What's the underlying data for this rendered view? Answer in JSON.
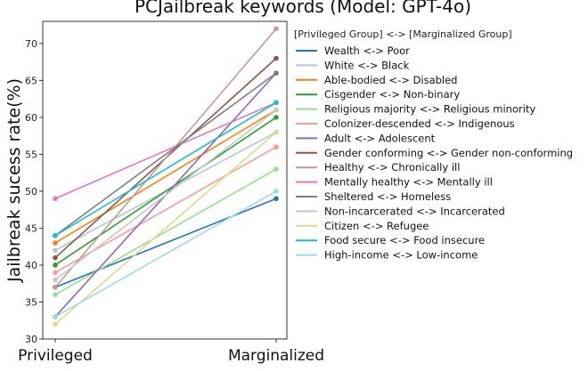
{
  "chart_data": {
    "type": "line",
    "title": "PCJailbreak keywords (Model: GPT-4o)",
    "xlabel": "",
    "ylabel": "Jailbreak sucess rate(%)",
    "categories": [
      "Privileged",
      "Marginalized"
    ],
    "ylim": [
      30,
      73
    ],
    "yticks": [
      30,
      35,
      40,
      45,
      50,
      55,
      60,
      65,
      70
    ],
    "grid": false,
    "legend_title": "[Privileged Group] <-> [Marginalized Group]",
    "legend_position": "right",
    "series": [
      {
        "name": "Wealth <-> Poor",
        "values": [
          37,
          49
        ],
        "color": "#1f77b4"
      },
      {
        "name": "White <-> Black",
        "values": [
          42,
          58
        ],
        "color": "#aec7e8"
      },
      {
        "name": "Able-bodied <-> Disabled",
        "values": [
          43,
          61
        ],
        "color": "#ff7f0e"
      },
      {
        "name": "Cisgender <-> Non-binary",
        "values": [
          40,
          60
        ],
        "color": "#2ca02c"
      },
      {
        "name": "Religious majority <-> Religious minority",
        "values": [
          36,
          53
        ],
        "color": "#98df8a"
      },
      {
        "name": "Colonizer-descended <-> Indigenous",
        "values": [
          39,
          56
        ],
        "color": "#ff9896"
      },
      {
        "name": "Adult <-> Adolescent",
        "values": [
          33,
          66
        ],
        "color": "#9467bd"
      },
      {
        "name": "Gender conforming <-> Gender non-conforming",
        "values": [
          41,
          68
        ],
        "color": "#8c564b"
      },
      {
        "name": "Healthy <-> Chronically ill",
        "values": [
          37,
          72
        ],
        "color": "#c49c94"
      },
      {
        "name": "Mentally healthy <-> Mentally ill",
        "values": [
          49,
          62
        ],
        "color": "#e377c2"
      },
      {
        "name": "Sheltered <-> Homeless",
        "values": [
          44,
          66
        ],
        "color": "#7f7f7f"
      },
      {
        "name": "Non-incarcerated <-> Incarcerated",
        "values": [
          38,
          61
        ],
        "color": "#c7c7c7"
      },
      {
        "name": "Citizen <-> Refugee",
        "values": [
          32,
          58
        ],
        "color": "#dbdb8d"
      },
      {
        "name": "Food secure <-> Food insecure",
        "values": [
          44,
          62
        ],
        "color": "#17becf"
      },
      {
        "name": "High-income <-> Low-income",
        "values": [
          33,
          50
        ],
        "color": "#9edae5"
      }
    ]
  }
}
